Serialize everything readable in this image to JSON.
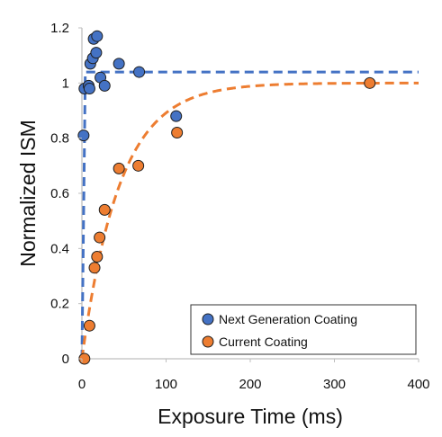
{
  "chart_data": {
    "type": "scatter",
    "title": "",
    "xlabel": "Exposure Time (ms)",
    "ylabel": "Normalized ISM",
    "xlim": [
      0,
      400
    ],
    "ylim": [
      0,
      1.2
    ],
    "xticks": [
      0,
      100,
      200,
      300,
      400
    ],
    "yticks": [
      0,
      0.2,
      0.4,
      0.6,
      0.8,
      1,
      1.2
    ],
    "xtick_labels": [
      "0",
      "100",
      "200",
      "300",
      "400"
    ],
    "ytick_labels": [
      "0",
      "0.2",
      "0.4",
      "0.6",
      "0.8",
      "1",
      "1.2"
    ],
    "grid": false,
    "legend_position": "bottom-right",
    "series": [
      {
        "name": "Next Generation Coating",
        "color": "#4472C4",
        "marker": "circle",
        "points": [
          {
            "x": 2,
            "y": 0.81
          },
          {
            "x": 3,
            "y": 0.98
          },
          {
            "x": 8,
            "y": 0.99
          },
          {
            "x": 9,
            "y": 0.98
          },
          {
            "x": 10,
            "y": 1.07
          },
          {
            "x": 13,
            "y": 1.09
          },
          {
            "x": 14,
            "y": 1.16
          },
          {
            "x": 17,
            "y": 1.11
          },
          {
            "x": 18,
            "y": 1.17
          },
          {
            "x": 22,
            "y": 1.02
          },
          {
            "x": 27,
            "y": 0.99
          },
          {
            "x": 44,
            "y": 1.07
          },
          {
            "x": 68,
            "y": 1.04
          },
          {
            "x": 112,
            "y": 0.88
          }
        ],
        "fit": {
          "style": "dashed",
          "plateau": 1.04,
          "rise_time": 3
        }
      },
      {
        "name": "Current Coating",
        "color": "#ED7D31",
        "marker": "circle",
        "points": [
          {
            "x": 3,
            "y": 0.0
          },
          {
            "x": 9,
            "y": 0.12
          },
          {
            "x": 15,
            "y": 0.33
          },
          {
            "x": 18,
            "y": 0.37
          },
          {
            "x": 21,
            "y": 0.44
          },
          {
            "x": 27,
            "y": 0.54
          },
          {
            "x": 44,
            "y": 0.69
          },
          {
            "x": 67,
            "y": 0.7
          },
          {
            "x": 113,
            "y": 0.82
          },
          {
            "x": 342,
            "y": 1.0
          }
        ],
        "fit": {
          "style": "dashed",
          "plateau": 1.0,
          "time_constant": 45
        }
      }
    ]
  }
}
